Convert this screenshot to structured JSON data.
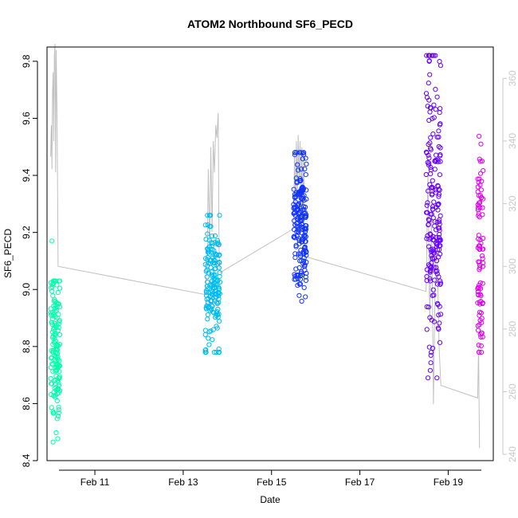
{
  "chart_data": {
    "type": "scatter",
    "title": "ATOM2 Northbound SF6_PECD",
    "xlabel": "Date",
    "ylabel": "SF6_PECD",
    "x_ticks": [
      "Feb 11",
      "Feb 13",
      "Feb 15",
      "Feb 17",
      "Feb 19"
    ],
    "y_ticks": [
      "8.4",
      "8.6",
      "8.8",
      "9.0",
      "9.2",
      "9.4",
      "9.6",
      "9.8"
    ],
    "y_right_ticks": [
      "240",
      "260",
      "280",
      "300",
      "320",
      "340",
      "360"
    ],
    "xlim": [
      "2020-02-09T22:00",
      "2020-02-20T00:30"
    ],
    "ylim": [
      8.4,
      9.85
    ],
    "y_right_lim": [
      238,
      370
    ],
    "grid": false,
    "legend": "none",
    "colors": {
      "ridge1": "#00ffaa",
      "ridge2": "#00bbee",
      "ridge3": "#1133ff",
      "ridge4": "#6600ff",
      "ridge5": "#dd00ee",
      "line": "#c0c0c0",
      "right_axis": "#c8c8c8"
    },
    "series": [
      {
        "start": "2020-02-10T00:00",
        "end": "2020-02-10T05:00",
        "y_min": 8.42,
        "y_max": 9.03,
        "y_mean": 8.8,
        "n": 150,
        "outliers": [
          {
            "x": "2020-02-10T00:40",
            "y": 9.17
          }
        ]
      },
      {
        "start": "2020-02-13T12:00",
        "end": "2020-02-13T20:00",
        "y_min": 8.78,
        "y_max": 9.26,
        "y_mean": 9.03,
        "n": 170,
        "outliers": [
          {
            "x": "2020-02-13T12:00",
            "y": 8.78
          }
        ]
      },
      {
        "start": "2020-02-15T12:00",
        "end": "2020-02-15T19:00",
        "y_min": 8.95,
        "y_max": 9.48,
        "y_mean": 9.23,
        "n": 200,
        "outliers": []
      },
      {
        "start": "2020-02-18T12:00",
        "end": "2020-02-18T20:00",
        "y_min": 8.69,
        "y_max": 9.82,
        "y_mean": 9.28,
        "n": 200,
        "outliers": [
          {
            "x": "2020-02-18T13:00",
            "y": 8.69
          },
          {
            "x": "2020-02-18T13:30",
            "y": 9.82
          },
          {
            "x": "2020-02-18T13:40",
            "y": 9.8
          }
        ]
      },
      {
        "start": "2020-02-19T16:00",
        "end": "2020-02-19T19:00",
        "y_min": 8.78,
        "y_max": 9.57,
        "y_mean": 9.12,
        "n": 90,
        "outliers": []
      }
    ],
    "secondary_line": {
      "axis": "right",
      "points": [
        {
          "x": "2020-02-10T00:00",
          "y": 335
        },
        {
          "x": "2020-02-10T00:20",
          "y": 345
        },
        {
          "x": "2020-02-10T00:40",
          "y": 331
        },
        {
          "x": "2020-02-10T01:00",
          "y": 355
        },
        {
          "x": "2020-02-10T01:20",
          "y": 362
        },
        {
          "x": "2020-02-10T01:40",
          "y": 340
        },
        {
          "x": "2020-02-10T02:00",
          "y": 367
        },
        {
          "x": "2020-02-10T02:20",
          "y": 371
        },
        {
          "x": "2020-02-10T02:40",
          "y": 330
        },
        {
          "x": "2020-02-10T03:00",
          "y": 369
        },
        {
          "x": "2020-02-10T03:30",
          "y": 346
        },
        {
          "x": "2020-02-10T04:00",
          "y": 300
        },
        {
          "x": "2020-02-13T12:00",
          "y": 291
        },
        {
          "x": "2020-02-13T13:00",
          "y": 300
        },
        {
          "x": "2020-02-13T13:40",
          "y": 331
        },
        {
          "x": "2020-02-13T14:20",
          "y": 305
        },
        {
          "x": "2020-02-13T15:00",
          "y": 338
        },
        {
          "x": "2020-02-13T15:40",
          "y": 311
        },
        {
          "x": "2020-02-13T16:20",
          "y": 340
        },
        {
          "x": "2020-02-13T17:00",
          "y": 330
        },
        {
          "x": "2020-02-13T17:40",
          "y": 345
        },
        {
          "x": "2020-02-13T18:20",
          "y": 341
        },
        {
          "x": "2020-02-13T19:00",
          "y": 349
        },
        {
          "x": "2020-02-13T19:30",
          "y": 305
        },
        {
          "x": "2020-02-13T20:00",
          "y": 298
        },
        {
          "x": "2020-02-15T12:00",
          "y": 312
        },
        {
          "x": "2020-02-15T12:30",
          "y": 336
        },
        {
          "x": "2020-02-15T13:00",
          "y": 318
        },
        {
          "x": "2020-02-15T13:30",
          "y": 340
        },
        {
          "x": "2020-02-15T14:00",
          "y": 322
        },
        {
          "x": "2020-02-15T14:30",
          "y": 342
        },
        {
          "x": "2020-02-15T15:00",
          "y": 326
        },
        {
          "x": "2020-02-15T15:30",
          "y": 340
        },
        {
          "x": "2020-02-15T16:00",
          "y": 320
        },
        {
          "x": "2020-02-15T16:30",
          "y": 338
        },
        {
          "x": "2020-02-15T17:00",
          "y": 316
        },
        {
          "x": "2020-02-15T17:30",
          "y": 336
        },
        {
          "x": "2020-02-15T18:00",
          "y": 300
        },
        {
          "x": "2020-02-15T19:00",
          "y": 303
        },
        {
          "x": "2020-02-18T12:00",
          "y": 292
        },
        {
          "x": "2020-02-18T13:00",
          "y": 330
        },
        {
          "x": "2020-02-18T14:00",
          "y": 282
        },
        {
          "x": "2020-02-18T15:00",
          "y": 320
        },
        {
          "x": "2020-02-18T16:00",
          "y": 256
        },
        {
          "x": "2020-02-18T17:00",
          "y": 300
        },
        {
          "x": "2020-02-18T18:00",
          "y": 305
        },
        {
          "x": "2020-02-18T19:00",
          "y": 275
        },
        {
          "x": "2020-02-18T20:00",
          "y": 262
        },
        {
          "x": "2020-02-19T16:00",
          "y": 258
        },
        {
          "x": "2020-02-19T16:30",
          "y": 274
        },
        {
          "x": "2020-02-19T17:00",
          "y": 242
        }
      ]
    }
  }
}
